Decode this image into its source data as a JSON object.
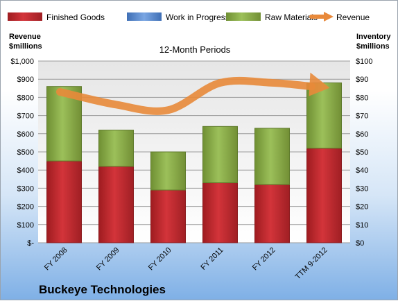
{
  "chart_data": {
    "type": "bar",
    "subtitle": "12-Month Periods",
    "company": "Buckeye Technologies",
    "y_left_label": [
      "Revenue",
      "$millions"
    ],
    "y_right_label": [
      "Inventory",
      "$millions"
    ],
    "y_left_ticks": [
      "$-",
      "$100",
      "$200",
      "$300",
      "$400",
      "$500",
      "$600",
      "$700",
      "$800",
      "$900",
      "$1,000"
    ],
    "y_right_ticks": [
      "$0",
      "$10",
      "$20",
      "$30",
      "$40",
      "$50",
      "$60",
      "$70",
      "$80",
      "$90",
      "$100"
    ],
    "y_left_range": [
      0,
      1000
    ],
    "y_right_range": [
      0,
      100
    ],
    "categories": [
      "FY 2008",
      "FY 2009",
      "FY 2010",
      "FY 2011",
      "FY 2012",
      "TTM 9-2012"
    ],
    "stacked": true,
    "legend_position": "top",
    "series": [
      {
        "name": "Finished Goods",
        "axis": "right",
        "color": "#c0282d",
        "values": [
          45,
          42,
          29,
          33,
          32,
          52
        ]
      },
      {
        "name": "Work in Progress",
        "axis": "right",
        "color": "#5b8fd6",
        "values": [
          0,
          0,
          0,
          0,
          0,
          0
        ]
      },
      {
        "name": "Raw Materials",
        "axis": "right",
        "color": "#8db04a",
        "values": [
          41,
          20,
          21,
          31,
          31,
          36
        ]
      },
      {
        "name": "Revenue",
        "axis": "left",
        "type": "line",
        "color": "#e8893a",
        "values": [
          830,
          760,
          730,
          880,
          880,
          860
        ]
      }
    ]
  }
}
